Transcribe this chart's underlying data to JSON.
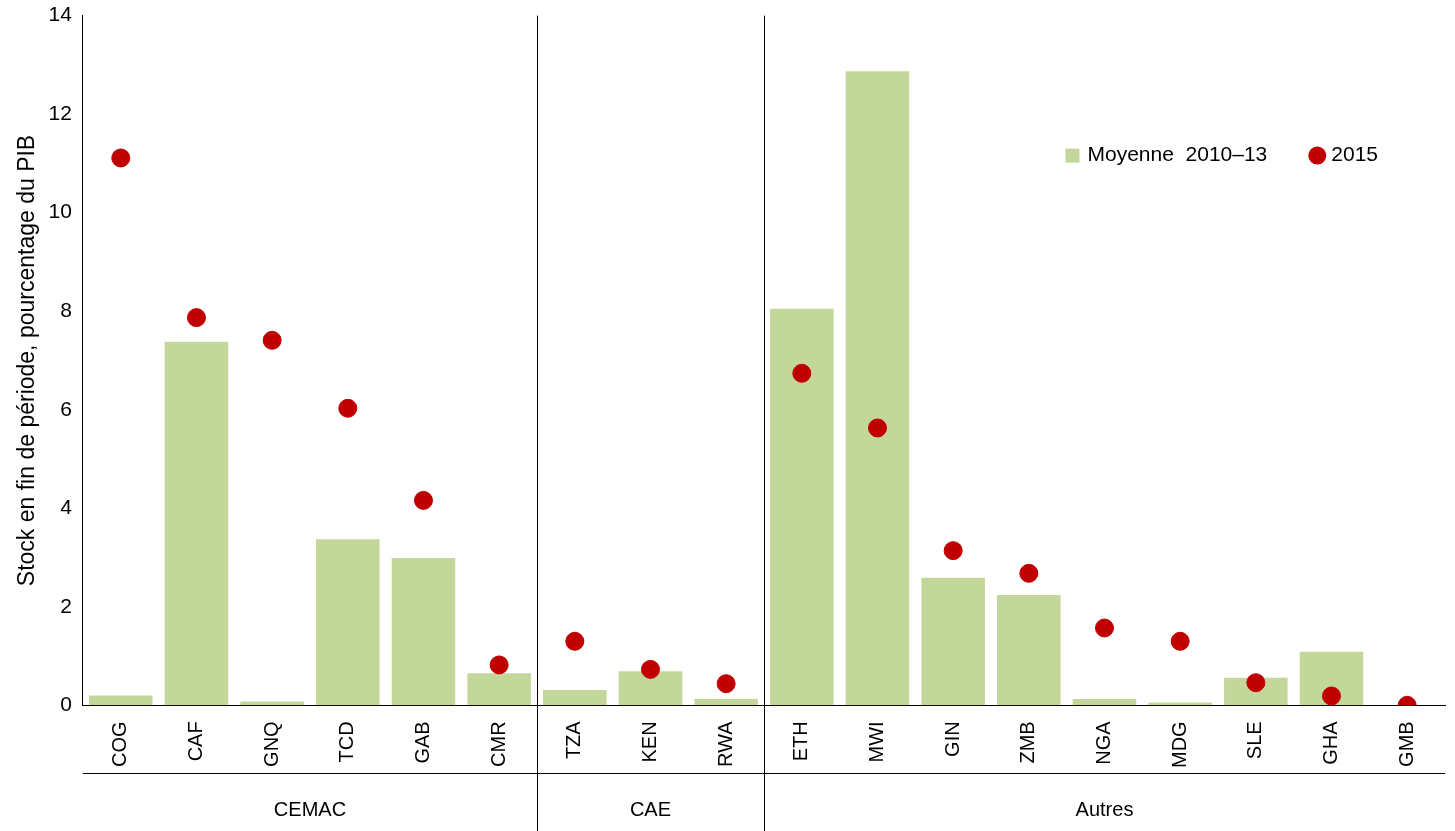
{
  "chart_data": {
    "type": "bar",
    "ylabel": "Stock en fin de période, pourcentage du PIB",
    "categories": [
      "COG",
      "CAF",
      "GNQ",
      "TCD",
      "GAB",
      "CMR",
      "TZA",
      "KEN",
      "RWA",
      "ETH",
      "MWI",
      "GIN",
      "ZMB",
      "NGA",
      "MDG",
      "SLE",
      "GHA",
      "GMB"
    ],
    "series": [
      {
        "name": "Moyenne  2010–13",
        "color": "#c4d79b",
        "values": [
          0.2,
          7.38,
          0.08,
          3.37,
          2.99,
          0.65,
          0.31,
          0.69,
          0.13,
          8.05,
          12.87,
          2.59,
          2.24,
          0.13,
          0.06,
          0.56,
          1.09,
          0
        ]
      },
      {
        "name": "2015",
        "type": "scatter",
        "color": "#c00000",
        "marker": "circle",
        "values": [
          11.11,
          7.87,
          7.41,
          6.03,
          4.16,
          0.82,
          1.3,
          0.73,
          0.44,
          6.74,
          5.63,
          3.14,
          2.68,
          1.57,
          1.3,
          0.46,
          0.19,
          0
        ]
      }
    ],
    "ylim": [
      0,
      14
    ],
    "yticks": [
      0,
      2,
      4,
      6,
      8,
      10,
      12,
      14
    ],
    "grid": false,
    "legend": "top right",
    "annotations": [
      "CEMAC",
      "CAE",
      "Autres"
    ]
  }
}
